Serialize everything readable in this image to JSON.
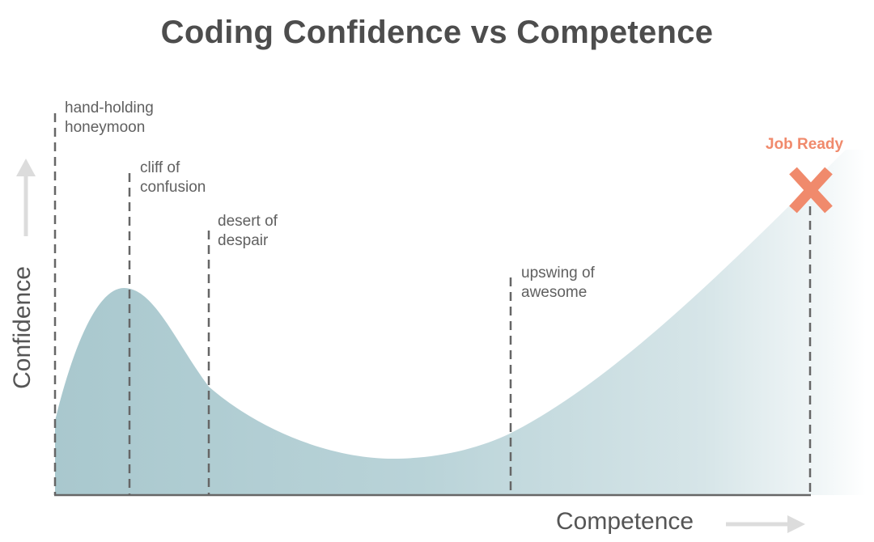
{
  "title": "Coding Confidence vs Competence",
  "y_axis_label": "Confidence",
  "x_axis_label": "Competence",
  "stages": [
    {
      "line1": "hand-holding",
      "line2": "honeymoon"
    },
    {
      "line1": "cliff of",
      "line2": "confusion"
    },
    {
      "line1": "desert of",
      "line2": "despair"
    },
    {
      "line1": "upswing of",
      "line2": "awesome"
    }
  ],
  "goal": {
    "label": "Job Ready",
    "marker_icon": "x-mark-icon"
  },
  "colors": {
    "curve_fill": "#a9c8ce",
    "title": "#4d4d4d",
    "accent": "#f08a6c",
    "dashed_lines": "#666666",
    "arrows": "#dcdcdc"
  }
}
